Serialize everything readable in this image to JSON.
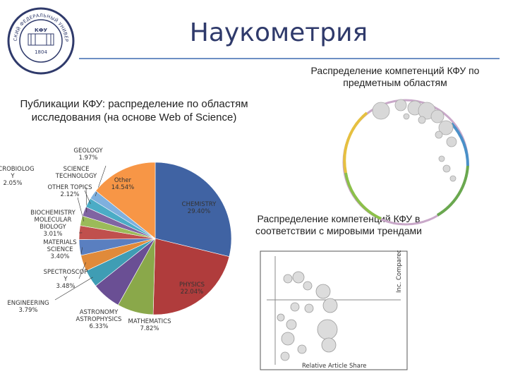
{
  "header": {
    "title": "Наукометрия"
  },
  "logo": {
    "name": "university-seal-icon",
    "text_top": "КАЗАНСКИЙ ФЕДЕРАЛЬНЫЙ УНИВЕРСИТЕТ",
    "text_mid": "КФУ",
    "year": "1804"
  },
  "captions": {
    "competence_by_subject": "Распределение компетенций КФУ по предметным областям",
    "competence_world_trends": "Распределение компетенций КФУ в соответствии с мировыми трендами"
  },
  "colors": {
    "title": "#2f3a6b",
    "rule": "#6d8fc4"
  },
  "chart_data": [
    {
      "type": "pie",
      "title": "Публикации КФУ: распределение по областям исследования (на основе Web of Science)",
      "slices": [
        {
          "label": [
            "CHEMISTRY",
            "29.40%"
          ],
          "value": 29.4,
          "color": "#4063a3"
        },
        {
          "label": [
            "PHYSICS",
            "22.04%"
          ],
          "value": 22.04,
          "color": "#b03c3c"
        },
        {
          "label": [
            "MATHEMATICS",
            "7.82%"
          ],
          "value": 7.82,
          "color": "#8aa84a"
        },
        {
          "label": [
            "ASTRONOMY",
            "ASTROPHYSICS",
            "6.33%"
          ],
          "value": 6.33,
          "color": "#6a4f94"
        },
        {
          "label": [
            "ENGINEERING",
            "3.79%"
          ],
          "value": 3.79,
          "color": "#3f9db4"
        },
        {
          "label": [
            "SPECTROSCOP",
            "Y",
            "3.48%"
          ],
          "value": 3.48,
          "color": "#e08a3a"
        },
        {
          "label": [
            "MATERIALS",
            "SCIENCE",
            "3.40%"
          ],
          "value": 3.4,
          "color": "#5a7fc0"
        },
        {
          "label": [
            "BIOCHEMISTRY",
            "MOLECULAR",
            "BIOLOGY",
            "3.01%"
          ],
          "value": 3.01,
          "color": "#c0504d"
        },
        {
          "label": [
            "OTHER TOPICS",
            "2.12%"
          ],
          "value": 2.12,
          "color": "#9bbb59"
        },
        {
          "label": [
            "SCIENCE",
            "TECHNOLOGY"
          ],
          "value": 2.05,
          "color": "#8064a2"
        },
        {
          "label": [
            "MICROBIOLOG",
            "Y",
            "2.05%"
          ],
          "value": 2.05,
          "color": "#4bacc6"
        },
        {
          "label": [
            "GEOLOGY",
            "1.97%"
          ],
          "value": 1.97,
          "color": "#7fb0de"
        },
        {
          "label": [
            "Other",
            "14.54%"
          ],
          "value": 14.54,
          "color": "#f79646"
        }
      ]
    }
  ],
  "scatter_axes": {
    "x_label": "Relative Article Share",
    "y_label": "Inc. Compared to Growth Rate"
  }
}
